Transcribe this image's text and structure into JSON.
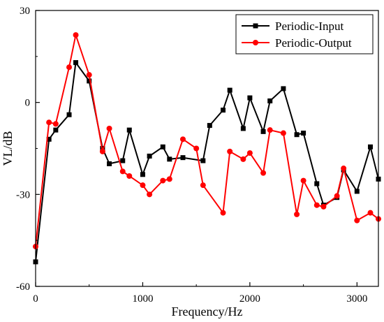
{
  "chart_data": {
    "type": "line",
    "title": "",
    "xlabel": "Frequency/Hz",
    "ylabel": "VL/dB",
    "xlim": [
      0,
      3200
    ],
    "ylim": [
      -60,
      30
    ],
    "xticks": [
      0,
      1000,
      2000,
      3000
    ],
    "yticks": [
      30,
      0,
      -30,
      -60
    ],
    "grid": false,
    "legend": "top-right",
    "series": [
      {
        "name": "Periodic-Input",
        "color": "#000000",
        "marker": "square",
        "x": [
          0,
          125,
          188,
          313,
          375,
          500,
          625,
          688,
          813,
          875,
          1000,
          1063,
          1188,
          1250,
          1375,
          1563,
          1625,
          1750,
          1813,
          1938,
          2000,
          2125,
          2188,
          2313,
          2438,
          2500,
          2625,
          2688,
          2813,
          2875,
          3000,
          3125,
          3200
        ],
        "y": [
          -52,
          -12,
          -9,
          -4,
          13,
          7,
          -15,
          -20,
          -19,
          -9,
          -23.5,
          -17.5,
          -14.5,
          -18.5,
          -18,
          -19,
          -7.5,
          -2.5,
          4,
          -8.5,
          1.5,
          -9.5,
          0.5,
          4.5,
          -10.5,
          -10,
          -26.5,
          -33.5,
          -31,
          -22,
          -29,
          -14.5,
          -25
        ]
      },
      {
        "name": "Periodic-Output",
        "color": "#ff0000",
        "marker": "circle",
        "x": [
          0,
          125,
          188,
          313,
          375,
          500,
          625,
          688,
          813,
          875,
          1000,
          1063,
          1188,
          1250,
          1375,
          1500,
          1563,
          1750,
          1813,
          1938,
          2000,
          2125,
          2188,
          2313,
          2438,
          2500,
          2625,
          2688,
          2813,
          2875,
          3000,
          3125,
          3200
        ],
        "y": [
          -47,
          -6.5,
          -7,
          11.5,
          22,
          9,
          -16,
          -8.5,
          -22.5,
          -24,
          -27,
          -30,
          -25.5,
          -25,
          -12,
          -15,
          -27,
          -36,
          -16,
          -18.5,
          -16.5,
          -23,
          -9,
          -10,
          -36.5,
          -25.5,
          -33.5,
          -34,
          -30.5,
          -21.5,
          -38.5,
          -36,
          -38
        ]
      }
    ]
  }
}
